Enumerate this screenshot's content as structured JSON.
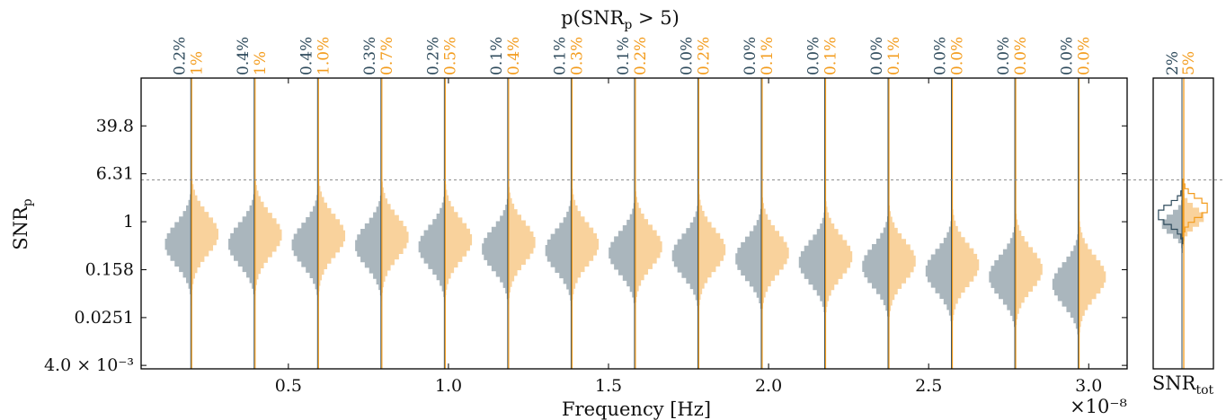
{
  "chart_data": {
    "type": "violin-histogram",
    "top_title": "p(SNR_p > 5)",
    "xlabel": "Frequency [Hz]",
    "x_multiplier": "×10⁻⁸",
    "ylabel": "SNR_p",
    "ylabel_main": "SNR",
    "ylabel_sub": "p",
    "yscale": "log",
    "ylim": [
      0.0035,
      250
    ],
    "xlim": [
      0.04,
      3.12
    ],
    "threshold_line": 5,
    "xticks": [
      {
        "value": 0.5,
        "label": "0.5"
      },
      {
        "value": 1.0,
        "label": "1.0"
      },
      {
        "value": 1.5,
        "label": "1.5"
      },
      {
        "value": 2.0,
        "label": "2.0"
      },
      {
        "value": 2.5,
        "label": "2.5"
      },
      {
        "value": 3.0,
        "label": "3.0"
      }
    ],
    "yticks": [
      {
        "value": 39.8,
        "label": "39.8"
      },
      {
        "value": 6.31,
        "label": "6.31"
      },
      {
        "value": 1,
        "label": "1"
      },
      {
        "value": 0.158,
        "label": "0.158"
      },
      {
        "value": 0.0251,
        "label": "0.0251"
      },
      {
        "value": 0.004,
        "label": "4.0 × 10⁻³"
      }
    ],
    "colors": {
      "series_a": "#2f4b5c",
      "series_a_fill": "#aab6bd",
      "series_b": "#f39c1d",
      "series_b_fill": "#f9d29c",
      "threshold": "#888888"
    },
    "frequencies": [
      0.198,
      0.396,
      0.594,
      0.792,
      0.99,
      1.188,
      1.386,
      1.584,
      1.782,
      1.98,
      2.178,
      2.376,
      2.574,
      2.772,
      2.97
    ],
    "series": [
      {
        "color_key": "series_a",
        "probabilities": [
          "0.2%",
          "0.4%",
          "0.4%",
          "0.3%",
          "0.2%",
          "0.1%",
          "0.1%",
          "0.1%",
          "0.0%",
          "0.0%",
          "0.0%",
          "0.0%",
          "0.0%",
          "0.0%",
          "0.0%"
        ],
        "median_snr": [
          0.42,
          0.42,
          0.41,
          0.4,
          0.38,
          0.35,
          0.33,
          0.3,
          0.27,
          0.24,
          0.21,
          0.18,
          0.15,
          0.12,
          0.09
        ]
      },
      {
        "color_key": "series_b",
        "probabilities": [
          "1%",
          "1%",
          "1.0%",
          "0.7%",
          "0.5%",
          "0.4%",
          "0.3%",
          "0.2%",
          "0.2%",
          "0.1%",
          "0.1%",
          "0.1%",
          "0.0%",
          "0.0%",
          "0.0%"
        ],
        "median_snr": [
          0.62,
          0.6,
          0.58,
          0.55,
          0.5,
          0.45,
          0.42,
          0.38,
          0.34,
          0.3,
          0.26,
          0.22,
          0.19,
          0.16,
          0.12
        ]
      }
    ],
    "total_panel": {
      "xlabel": "SNR_tot",
      "xlabel_main": "SNR",
      "xlabel_sub": "tot",
      "probabilities": [
        {
          "label": "2%",
          "color_key": "series_a"
        },
        {
          "label": "5%",
          "color_key": "series_b"
        }
      ],
      "median_snr": [
        1.3,
        1.7
      ]
    }
  }
}
